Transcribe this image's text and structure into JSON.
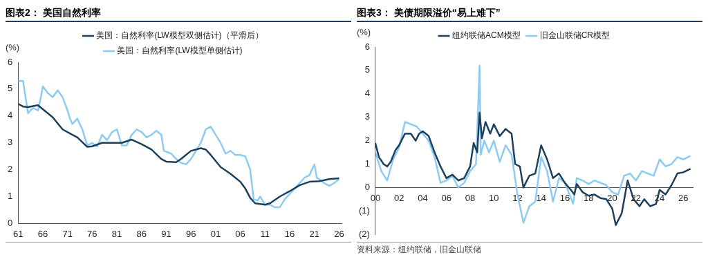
{
  "chart_data": [
    {
      "type": "line",
      "title": "图表2： 美国自然利率",
      "ylabel": "(%)",
      "legend": "top",
      "xlim": [
        1961,
        2026.5
      ],
      "xticks": [
        {
          "value": 1961,
          "label": "61"
        },
        {
          "value": 1966,
          "label": "66"
        },
        {
          "value": 1971,
          "label": "71"
        },
        {
          "value": 1976,
          "label": "76"
        },
        {
          "value": 1981,
          "label": "81"
        },
        {
          "value": 1986,
          "label": "86"
        },
        {
          "value": 1991,
          "label": "91"
        },
        {
          "value": 1996,
          "label": "96"
        },
        {
          "value": 2001,
          "label": "01"
        },
        {
          "value": 2006,
          "label": "06"
        },
        {
          "value": 2011,
          "label": "11"
        },
        {
          "value": 2016,
          "label": "16"
        },
        {
          "value": 2021,
          "label": "21"
        },
        {
          "value": 2026,
          "label": "26"
        }
      ],
      "ylim": [
        0,
        6
      ],
      "yticks": [
        0,
        1,
        2,
        3,
        4,
        5,
        6
      ],
      "series": [
        {
          "name": "美国：自然利率(LW模型双侧估计)（平滑后）",
          "color": "#1c3f5e",
          "x": [
            1961,
            1962,
            1963,
            1965,
            1966,
            1968,
            1970,
            1972,
            1973,
            1975,
            1976,
            1978,
            1980,
            1982,
            1984,
            1986,
            1988,
            1990,
            1991,
            1993,
            1994,
            1996,
            1998,
            1999,
            2000,
            2002,
            2004,
            2006,
            2007,
            2008,
            2009,
            2011,
            2012,
            2014,
            2016,
            2018,
            2020,
            2022,
            2024,
            2026
          ],
          "values": [
            4.45,
            4.35,
            4.33,
            4.4,
            4.25,
            3.95,
            3.5,
            3.3,
            3.2,
            2.85,
            2.87,
            3.0,
            3.0,
            3.0,
            3.12,
            2.95,
            2.75,
            2.4,
            2.3,
            2.28,
            2.4,
            2.7,
            2.8,
            2.75,
            2.55,
            2.1,
            1.85,
            1.55,
            1.3,
            0.95,
            0.75,
            0.7,
            0.75,
            1.0,
            1.2,
            1.42,
            1.55,
            1.57,
            1.65,
            1.68
          ]
        },
        {
          "name": "美国：自然利率(LW模型单侧估计)",
          "color": "#8ecbf3",
          "x": [
            1961,
            1962,
            1962.5,
            1963,
            1964,
            1965,
            1965.5,
            1966,
            1967,
            1968,
            1969,
            1970,
            1971,
            1971.5,
            1972,
            1973,
            1974,
            1975,
            1976,
            1977,
            1978,
            1979,
            1980,
            1981,
            1982,
            1983,
            1984,
            1985,
            1986,
            1987,
            1988,
            1989,
            1990,
            1990.5,
            1992,
            1993,
            1994,
            1995,
            1996,
            1997,
            1998,
            1999,
            2000,
            2001,
            2002,
            2003,
            2004,
            2005,
            2006,
            2007,
            2008,
            2008.7,
            2009.5,
            2010,
            2011,
            2012,
            2013,
            2014,
            2015,
            2016,
            2017,
            2018,
            2019,
            2020,
            2021,
            2021.5,
            2023,
            2024,
            2025,
            2026
          ],
          "values": [
            5.3,
            5.3,
            4.7,
            4.1,
            4.3,
            4.2,
            4.6,
            5.1,
            4.85,
            4.7,
            4.95,
            4.7,
            4.2,
            3.9,
            3.7,
            3.9,
            3.5,
            2.9,
            3.0,
            2.85,
            3.3,
            3.1,
            3.4,
            3.5,
            2.9,
            2.9,
            3.3,
            3.5,
            3.4,
            3.2,
            3.3,
            3.45,
            3.3,
            2.7,
            2.6,
            2.4,
            2.25,
            2.2,
            2.4,
            2.7,
            3.0,
            3.5,
            3.6,
            3.3,
            3.0,
            2.6,
            2.7,
            2.55,
            2.55,
            2.5,
            2.0,
            0.9,
            0.85,
            1.0,
            0.7,
            0.7,
            0.6,
            0.6,
            0.9,
            1.1,
            1.3,
            1.5,
            1.7,
            1.8,
            2.2,
            1.7,
            1.5,
            1.4,
            1.5,
            1.65
          ]
        }
      ]
    },
    {
      "type": "line",
      "title": "图表3： 美债期限溢价“易上难下”",
      "ylabel": "(%)",
      "legend": "top",
      "annotations": [
        "资料来源：纽约联储，旧金山联储"
      ],
      "xlim": [
        2000,
        2026.8
      ],
      "xticks": [
        {
          "value": 2000,
          "label": "00"
        },
        {
          "value": 2002,
          "label": "02"
        },
        {
          "value": 2004,
          "label": "04"
        },
        {
          "value": 2006,
          "label": "06"
        },
        {
          "value": 2008,
          "label": "08"
        },
        {
          "value": 2010,
          "label": "10"
        },
        {
          "value": 2012,
          "label": "12"
        },
        {
          "value": 2014,
          "label": "14"
        },
        {
          "value": 2016,
          "label": "16"
        },
        {
          "value": 2018,
          "label": "18"
        },
        {
          "value": 2020,
          "label": "20"
        },
        {
          "value": 2022,
          "label": "22"
        },
        {
          "value": 2024,
          "label": "24"
        },
        {
          "value": 2026,
          "label": "26"
        }
      ],
      "ylim": [
        -2,
        6
      ],
      "yticks": [
        {
          "value": -2,
          "label": "(2)"
        },
        {
          "value": -1,
          "label": "(1)"
        },
        0,
        1,
        2,
        3,
        4,
        5,
        6
      ],
      "series": [
        {
          "name": "纽约联储ACM模型",
          "color": "#1c3f5e",
          "x": [
            2000,
            2000.3,
            2000.7,
            2001,
            2001.3,
            2001.7,
            2002,
            2002.5,
            2003,
            2003.4,
            2003.7,
            2004,
            2004.5,
            2005,
            2005.5,
            2006,
            2006.5,
            2007,
            2007.5,
            2008,
            2008.3,
            2008.6,
            2008.8,
            2009,
            2009.3,
            2009.7,
            2010,
            2010.5,
            2011,
            2011.5,
            2011.8,
            2012.2,
            2012.5,
            2013,
            2013.5,
            2014,
            2014.5,
            2015,
            2015.5,
            2016,
            2016.5,
            2016.8,
            2017,
            2017.5,
            2018,
            2018.5,
            2019,
            2019.5,
            2020,
            2020.3,
            2020.8,
            2021.3,
            2021.8,
            2022.3,
            2022.7,
            2023.2,
            2023.7,
            2024,
            2024.5,
            2025,
            2025.5,
            2026,
            2026.6
          ],
          "values": [
            1.9,
            1.3,
            1.0,
            0.9,
            1.1,
            1.6,
            1.8,
            2.3,
            2.3,
            2.0,
            2.3,
            2.4,
            2.2,
            1.5,
            0.9,
            0.4,
            0.55,
            0.3,
            0.4,
            0.9,
            1.9,
            1.5,
            3.2,
            2.1,
            2.8,
            2.3,
            2.7,
            2.2,
            2.5,
            2.3,
            1.0,
            0.9,
            0.0,
            0.5,
            0.6,
            1.8,
            1.2,
            0.4,
            0.6,
            0.2,
            -0.1,
            -0.3,
            0.15,
            -0.2,
            -0.35,
            -0.3,
            -0.45,
            -0.5,
            -0.9,
            -1.6,
            -1.1,
            0.3,
            -0.5,
            -0.8,
            -0.5,
            -0.8,
            -0.7,
            -0.1,
            -0.3,
            0.1,
            0.6,
            0.65,
            0.8
          ]
        },
        {
          "name": "旧金山联储CR模型",
          "color": "#8ecbf3",
          "x": [
            2000,
            2000.5,
            2001,
            2001.5,
            2002,
            2002.5,
            2003,
            2003.5,
            2004,
            2004.5,
            2005,
            2005.5,
            2006,
            2006.5,
            2007,
            2007.5,
            2008,
            2008.5,
            2008.8,
            2008.9,
            2009.2,
            2009.6,
            2010,
            2010.5,
            2011,
            2011.5,
            2012,
            2012.5,
            2013,
            2013.5,
            2014,
            2014.5,
            2015,
            2015.5,
            2016,
            2016.7,
            2017,
            2017.5,
            2018,
            2018.5,
            2019,
            2019.5,
            2020,
            2020.5,
            2021,
            2021.5,
            2022,
            2022.5,
            2023,
            2023.5,
            2024,
            2024.5,
            2025,
            2025.5,
            2026,
            2026.6
          ],
          "values": [
            1.5,
            0.7,
            0.3,
            1.2,
            1.7,
            2.8,
            2.7,
            2.6,
            2.3,
            2.0,
            1.3,
            0.2,
            0.3,
            0.5,
            0.0,
            0.2,
            0.7,
            1.0,
            5.2,
            1.4,
            2.0,
            1.5,
            2.0,
            1.1,
            1.8,
            1.4,
            -0.3,
            -1.5,
            -0.8,
            -0.6,
            1.3,
            0.7,
            -0.6,
            0.4,
            0.2,
            -0.7,
            0.4,
            0.3,
            0.15,
            0.3,
            0.2,
            0.1,
            -0.2,
            -0.3,
            0.5,
            0.6,
            0.3,
            0.7,
            0.6,
            0.5,
            1.2,
            0.9,
            1.0,
            1.3,
            1.2,
            1.35
          ]
        }
      ]
    }
  ]
}
